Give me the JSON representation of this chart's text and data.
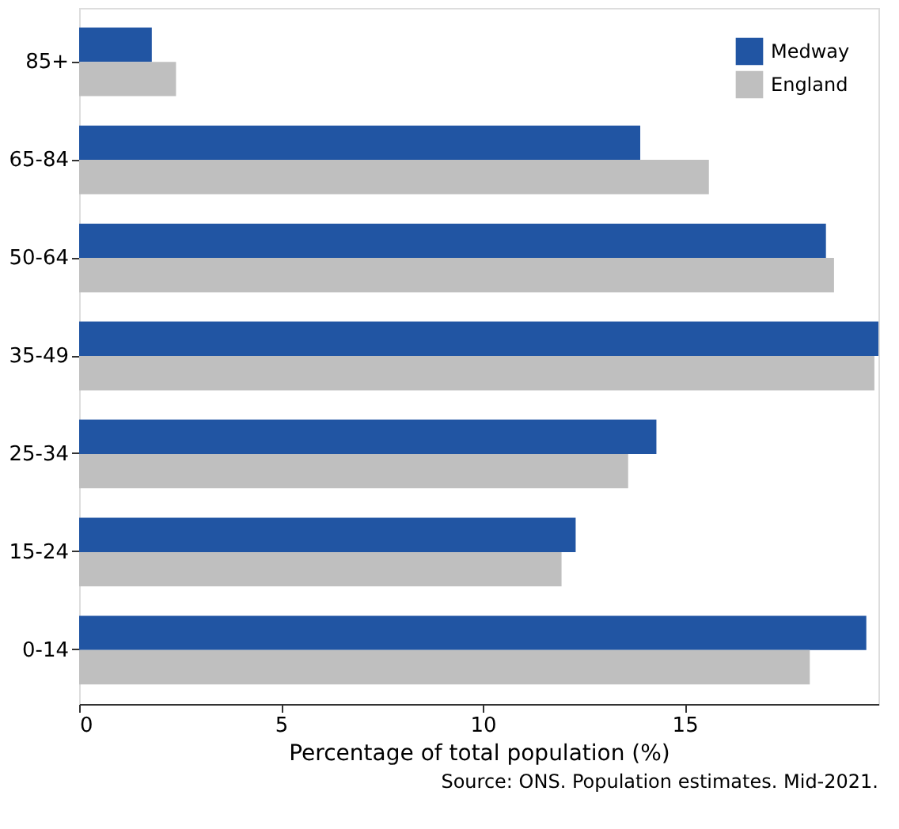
{
  "chart_data": {
    "type": "bar",
    "orientation": "horizontal",
    "categories": [
      "85+",
      "65-84",
      "50-64",
      "35-49",
      "25-34",
      "15-24",
      "0-14"
    ],
    "series": [
      {
        "name": "Medway",
        "color": "#2155a3",
        "values": [
          1.8,
          13.9,
          18.5,
          19.8,
          14.3,
          12.3,
          19.5
        ]
      },
      {
        "name": "England",
        "color": "#bfbfbf",
        "values": [
          2.4,
          15.6,
          18.7,
          19.7,
          13.6,
          11.95,
          18.1
        ]
      }
    ],
    "xlabel": "Percentage of total population (%)",
    "xlim": [
      0,
      19.8
    ],
    "xticks": [
      0,
      5,
      10,
      15
    ],
    "grid": false,
    "legend": "top right",
    "annotations": [
      "Source: ONS. Population estimates. Mid-2021."
    ]
  }
}
